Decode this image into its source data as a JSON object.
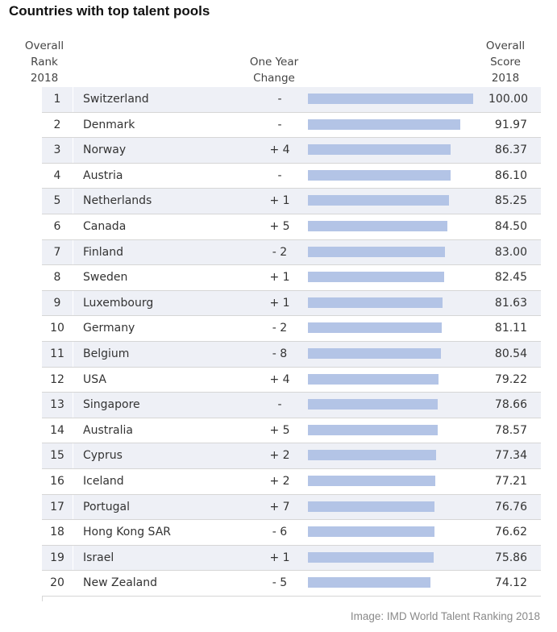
{
  "title": "Countries with top talent pools",
  "headers": {
    "rank": "Overall\nRank\n2018",
    "change": "One Year\nChange",
    "score": "Overall\nScore\n2018"
  },
  "credit": "Image: IMD World Talent Ranking 2018",
  "chart_data": {
    "type": "table",
    "title": "Countries with top talent pools",
    "columns": [
      "Overall Rank 2018",
      "",
      "One Year Change",
      "Overall Score 2018"
    ],
    "bar_color": "#b3c4e6",
    "bar_range": [
      0,
      100
    ],
    "rows": [
      {
        "rank": "1",
        "country": "Switzerland",
        "change": "-",
        "score": "100.00",
        "value": 100.0
      },
      {
        "rank": "2",
        "country": "Denmark",
        "change": "-",
        "score": "91.97",
        "value": 91.97
      },
      {
        "rank": "3",
        "country": "Norway",
        "change": "+ 4",
        "score": "86.37",
        "value": 86.37
      },
      {
        "rank": "4",
        "country": "Austria",
        "change": "-",
        "score": "86.10",
        "value": 86.1
      },
      {
        "rank": "5",
        "country": "Netherlands",
        "change": "+ 1",
        "score": "85.25",
        "value": 85.25
      },
      {
        "rank": "6",
        "country": "Canada",
        "change": "+ 5",
        "score": "84.50",
        "value": 84.5
      },
      {
        "rank": "7",
        "country": "Finland",
        "change": "- 2",
        "score": "83.00",
        "value": 83.0
      },
      {
        "rank": "8",
        "country": "Sweden",
        "change": "+ 1",
        "score": "82.45",
        "value": 82.45
      },
      {
        "rank": "9",
        "country": "Luxembourg",
        "change": "+ 1",
        "score": "81.63",
        "value": 81.63
      },
      {
        "rank": "10",
        "country": "Germany",
        "change": "- 2",
        "score": "81.11",
        "value": 81.11
      },
      {
        "rank": "11",
        "country": "Belgium",
        "change": "- 8",
        "score": "80.54",
        "value": 80.54
      },
      {
        "rank": "12",
        "country": "USA",
        "change": "+ 4",
        "score": "79.22",
        "value": 79.22
      },
      {
        "rank": "13",
        "country": "Singapore",
        "change": "-",
        "score": "78.66",
        "value": 78.66
      },
      {
        "rank": "14",
        "country": "Australia",
        "change": "+ 5",
        "score": "78.57",
        "value": 78.57
      },
      {
        "rank": "15",
        "country": "Cyprus",
        "change": "+ 2",
        "score": "77.34",
        "value": 77.34
      },
      {
        "rank": "16",
        "country": "Iceland",
        "change": "+ 2",
        "score": "77.21",
        "value": 77.21
      },
      {
        "rank": "17",
        "country": "Portugal",
        "change": "+ 7",
        "score": "76.76",
        "value": 76.76
      },
      {
        "rank": "18",
        "country": "Hong Kong SAR",
        "change": "- 6",
        "score": "76.62",
        "value": 76.62
      },
      {
        "rank": "19",
        "country": "Israel",
        "change": "+ 1",
        "score": "75.86",
        "value": 75.86
      },
      {
        "rank": "20",
        "country": "New Zealand",
        "change": "- 5",
        "score": "74.12",
        "value": 74.12
      }
    ]
  }
}
